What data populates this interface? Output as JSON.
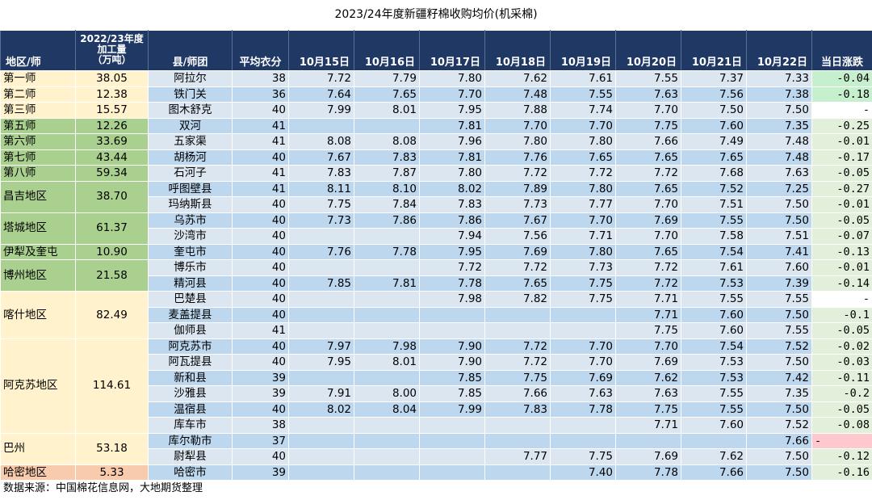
{
  "title": "2023/24年度新疆籽棉收购均价(机采棉)",
  "header": {
    "region": "地区/师",
    "production": [
      "2022/23年度",
      "加工量",
      "（万吨）"
    ],
    "county": "县/师团",
    "lint": "平均衣分",
    "dates": [
      "10月15日",
      "10月16日",
      "10月17日",
      "10月18日",
      "10月19日",
      "10月20日",
      "10月21日",
      "10月22日"
    ],
    "change": "当日涨跌"
  },
  "regions": [
    {
      "name": "第一师",
      "prod": "38.05",
      "color": "tan",
      "span": 1
    },
    {
      "name": "第二师",
      "prod": "12.38",
      "color": "tan",
      "span": 1
    },
    {
      "name": "第三师",
      "prod": "15.57",
      "color": "tan",
      "span": 1
    },
    {
      "name": "第五师",
      "prod": "12.26",
      "color": "grn",
      "span": 1
    },
    {
      "name": "第六师",
      "prod": "33.69",
      "color": "grn",
      "span": 1
    },
    {
      "name": "第七师",
      "prod": "43.44",
      "color": "grn",
      "span": 1
    },
    {
      "name": "第八师",
      "prod": "59.34",
      "color": "grn",
      "span": 1
    },
    {
      "name": "昌吉地区",
      "prod": "38.70",
      "color": "grn",
      "span": 2
    },
    {
      "name": "塔城地区",
      "prod": "61.37",
      "color": "grn",
      "span": 2
    },
    {
      "name": "伊犁及奎屯",
      "prod": "10.90",
      "color": "grn",
      "span": 1
    },
    {
      "name": "博州地区",
      "prod": "21.58",
      "color": "grn",
      "span": 2
    },
    {
      "name": "喀什地区",
      "prod": "82.49",
      "color": "tan",
      "span": 3
    },
    {
      "name": "阿克苏地区",
      "prod": "114.61",
      "color": "tan",
      "span": 6
    },
    {
      "name": "巴州",
      "prod": "53.18",
      "color": "tan",
      "span": 2
    },
    {
      "name": "哈密地区",
      "prod": "5.33",
      "color": "orn",
      "span": 1
    }
  ],
  "rows": [
    {
      "county": "阿拉尔",
      "lint": "38",
      "prices": [
        "7.72",
        "7.79",
        "7.80",
        "7.62",
        "7.61",
        "7.55",
        "7.37",
        "7.33"
      ],
      "change": "-0.04",
      "tone": "neg-strong"
    },
    {
      "county": "铁门关",
      "lint": "36",
      "prices": [
        "7.64",
        "7.65",
        "7.70",
        "7.48",
        "7.55",
        "7.63",
        "7.56",
        "7.38"
      ],
      "change": "-0.18",
      "tone": "neg-strong"
    },
    {
      "county": "图木舒克",
      "lint": "40",
      "prices": [
        "7.99",
        "8.01",
        "7.95",
        "7.88",
        "7.74",
        "7.70",
        "7.50",
        "7.50"
      ],
      "change": "-",
      "tone": "zero"
    },
    {
      "county": "双河",
      "lint": "41",
      "prices": [
        "",
        "",
        "7.81",
        "7.70",
        "7.70",
        "7.75",
        "7.60",
        "7.35"
      ],
      "change": "-0.25",
      "tone": "neg"
    },
    {
      "county": "五家渠",
      "lint": "41",
      "prices": [
        "8.08",
        "8.08",
        "7.96",
        "7.80",
        "7.80",
        "7.66",
        "7.49",
        "7.48"
      ],
      "change": "-0.01",
      "tone": "neg"
    },
    {
      "county": "胡杨河",
      "lint": "40",
      "prices": [
        "7.67",
        "7.83",
        "7.81",
        "7.76",
        "7.65",
        "7.65",
        "7.65",
        "7.48"
      ],
      "change": "-0.17",
      "tone": "neg"
    },
    {
      "county": "石河子",
      "lint": "41",
      "prices": [
        "7.83",
        "7.87",
        "7.80",
        "7.72",
        "7.72",
        "7.72",
        "7.68",
        "7.63"
      ],
      "change": "-0.05",
      "tone": "neg"
    },
    {
      "county": "呼图壁县",
      "lint": "41",
      "prices": [
        "8.11",
        "8.10",
        "8.02",
        "7.89",
        "7.80",
        "7.65",
        "7.52",
        "7.25"
      ],
      "change": "-0.27",
      "tone": "neg"
    },
    {
      "county": "玛纳斯县",
      "lint": "40",
      "prices": [
        "7.75",
        "7.84",
        "7.83",
        "7.73",
        "7.77",
        "7.70",
        "7.51",
        "7.50"
      ],
      "change": "-0.01",
      "tone": "neg"
    },
    {
      "county": "乌苏市",
      "lint": "40",
      "prices": [
        "7.73",
        "7.86",
        "7.86",
        "7.67",
        "7.70",
        "7.69",
        "7.55",
        "7.50"
      ],
      "change": "-0.05",
      "tone": "neg"
    },
    {
      "county": "沙湾市",
      "lint": "40",
      "prices": [
        "",
        "",
        "7.94",
        "7.56",
        "7.71",
        "7.70",
        "7.58",
        "7.51"
      ],
      "change": "-0.07",
      "tone": "neg"
    },
    {
      "county": "奎屯市",
      "lint": "40",
      "prices": [
        "7.76",
        "7.78",
        "7.95",
        "7.69",
        "7.80",
        "7.65",
        "7.54",
        "7.41"
      ],
      "change": "-0.13",
      "tone": "neg"
    },
    {
      "county": "博乐市",
      "lint": "40",
      "prices": [
        "",
        "",
        "7.72",
        "7.72",
        "7.73",
        "7.72",
        "7.61",
        "7.60"
      ],
      "change": "-0.01",
      "tone": "neg"
    },
    {
      "county": "精河县",
      "lint": "40",
      "prices": [
        "7.85",
        "7.81",
        "7.78",
        "7.65",
        "7.75",
        "7.72",
        "7.53",
        "7.39"
      ],
      "change": "-0.14",
      "tone": "neg"
    },
    {
      "county": "巴楚县",
      "lint": "40",
      "prices": [
        "",
        "",
        "7.98",
        "7.82",
        "7.75",
        "7.71",
        "7.55",
        "7.55"
      ],
      "change": "-",
      "tone": "zero"
    },
    {
      "county": "麦盖提县",
      "lint": "40",
      "prices": [
        "",
        "",
        "",
        "",
        "",
        "7.71",
        "7.60",
        "7.50"
      ],
      "change": "-0.1",
      "tone": "neg"
    },
    {
      "county": "伽师县",
      "lint": "41",
      "prices": [
        "",
        "",
        "",
        "",
        "",
        "7.75",
        "7.60",
        "7.55"
      ],
      "change": "-0.05",
      "tone": "neg"
    },
    {
      "county": "阿克苏市",
      "lint": "40",
      "prices": [
        "7.97",
        "7.98",
        "7.90",
        "7.72",
        "7.70",
        "7.70",
        "7.54",
        "7.52"
      ],
      "change": "-0.02",
      "tone": "neg"
    },
    {
      "county": "阿瓦提县",
      "lint": "40",
      "prices": [
        "7.95",
        "8.01",
        "7.90",
        "7.72",
        "7.70",
        "7.69",
        "7.53",
        "7.50"
      ],
      "change": "-0.03",
      "tone": "neg"
    },
    {
      "county": "新和县",
      "lint": "39",
      "prices": [
        "",
        "",
        "7.85",
        "7.75",
        "7.69",
        "7.62",
        "7.53",
        "7.42"
      ],
      "change": "-0.11",
      "tone": "neg"
    },
    {
      "county": "沙雅县",
      "lint": "39",
      "prices": [
        "7.91",
        "8.00",
        "7.85",
        "7.66",
        "7.63",
        "7.63",
        "7.55",
        "7.35"
      ],
      "change": "-0.2",
      "tone": "neg"
    },
    {
      "county": "温宿县",
      "lint": "40",
      "prices": [
        "8.02",
        "8.04",
        "7.99",
        "7.83",
        "7.78",
        "7.75",
        "7.55",
        "7.50"
      ],
      "change": "-0.05",
      "tone": "neg"
    },
    {
      "county": "库车市",
      "lint": "38",
      "prices": [
        "",
        "",
        "",
        "",
        "",
        "7.71",
        "7.60",
        "7.52"
      ],
      "change": "-0.08",
      "tone": "neg"
    },
    {
      "county": "库尔勒市",
      "lint": "37",
      "prices": [
        "",
        "",
        "",
        "",
        "",
        "",
        "",
        "7.66"
      ],
      "change": "-",
      "tone": "pos"
    },
    {
      "county": "尉犁县",
      "lint": "40",
      "prices": [
        "",
        "",
        "",
        "7.77",
        "7.75",
        "7.69",
        "7.62",
        "7.50"
      ],
      "change": "-0.12",
      "tone": "neg"
    },
    {
      "county": "哈密市",
      "lint": "39",
      "prices": [
        "",
        "",
        "",
        "",
        "7.40",
        "7.78",
        "7.66",
        "7.50"
      ],
      "change": "-0.16",
      "tone": "neg"
    }
  ],
  "source": "数据来源：中国棉花信息网，大地期货整理"
}
